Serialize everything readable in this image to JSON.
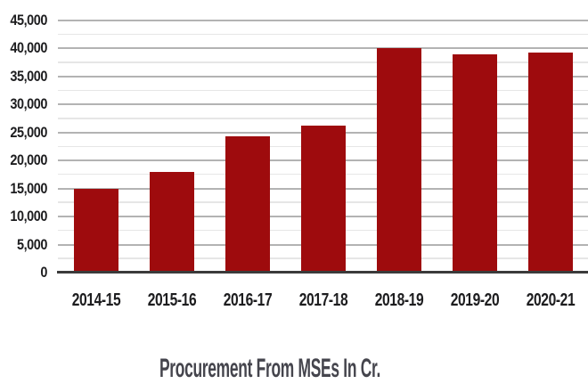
{
  "chart_data": {
    "type": "bar",
    "title": "Procurement From MSEs In Cr.",
    "categories": [
      "2014-15",
      "2015-16",
      "2016-17",
      "2017-18",
      "2018-19",
      "2019-20",
      "2020-21"
    ],
    "values": [
      15000,
      18000,
      24300,
      26200,
      40100,
      39000,
      39200
    ],
    "xlabel": "",
    "ylabel": "",
    "ylim": [
      0,
      45000
    ],
    "ytick_values": [
      0,
      5000,
      10000,
      15000,
      20000,
      25000,
      30000,
      35000,
      40000,
      45000
    ],
    "ytick_labels": [
      "0",
      "5,000",
      "10,000",
      "15,000",
      "20,000",
      "25,000",
      "30,000",
      "35,000",
      "40,000",
      "45,000"
    ],
    "minor_tick_step": 2500,
    "grid": "horizontal, major and minor lines",
    "legend": "none",
    "colors": {
      "bar": "#9E0B0D",
      "grid_major": "#b3b3b3",
      "grid_minor": "#e6e6e6",
      "axis_line": "#3b3b3b",
      "tick_text": "#1d1d1f",
      "title_text": "#45454d"
    }
  }
}
